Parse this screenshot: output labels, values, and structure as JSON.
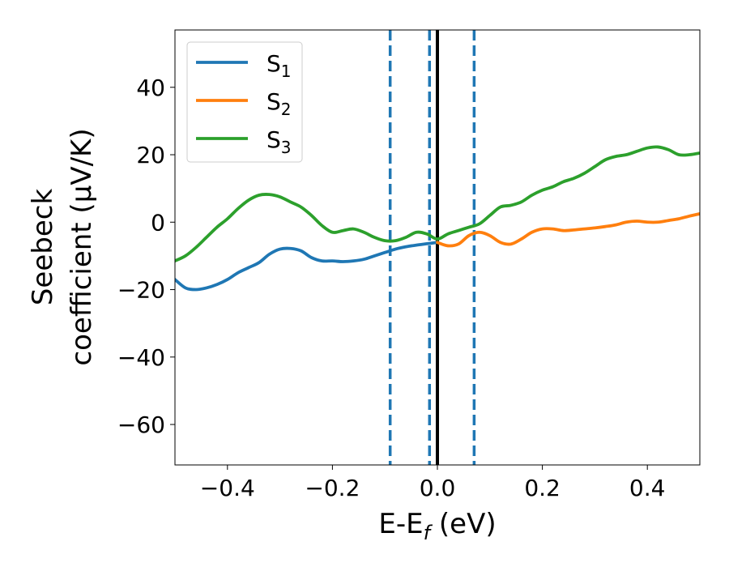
{
  "chart_data": {
    "type": "line",
    "title": "",
    "xlabel": {
      "main": "E-E",
      "sub": "f",
      "tail": " (eV)"
    },
    "ylabel": {
      "line1": "Seebeck",
      "line2": "coefficient  (μV/K)"
    },
    "xlim": [
      -0.5,
      0.5
    ],
    "ylim": [
      -72,
      57
    ],
    "xticks": [
      -0.4,
      -0.2,
      0.0,
      0.2,
      0.4
    ],
    "xtick_labels": [
      "−0.4",
      "−0.2",
      "0.0",
      "0.2",
      "0.4"
    ],
    "yticks": [
      -60,
      -40,
      -20,
      0,
      20,
      40
    ],
    "ytick_labels": [
      "−60",
      "−40",
      "−20",
      "0",
      "20",
      "40"
    ],
    "grid": false,
    "legend_position": "upper-left",
    "vlines": [
      {
        "x": -0.09,
        "style": "dashed",
        "color": "#1f77b4"
      },
      {
        "x": -0.015,
        "style": "dashed",
        "color": "#1f77b4"
      },
      {
        "x": 0.0,
        "style": "solid",
        "color": "#000000"
      },
      {
        "x": 0.07,
        "style": "dashed",
        "color": "#1f77b4"
      }
    ],
    "series": [
      {
        "name": "S",
        "sub": "1",
        "color": "#1f77b4",
        "x": [
          -0.5,
          -0.48,
          -0.46,
          -0.44,
          -0.42,
          -0.4,
          -0.38,
          -0.36,
          -0.34,
          -0.32,
          -0.3,
          -0.28,
          -0.26,
          -0.24,
          -0.22,
          -0.2,
          -0.18,
          -0.16,
          -0.14,
          -0.12,
          -0.1,
          -0.08,
          -0.06,
          -0.04,
          -0.02,
          0.0
        ],
        "y": [
          -17,
          -19.5,
          -20,
          -19.5,
          -18.5,
          -17,
          -15,
          -13.5,
          -12,
          -9.5,
          -8,
          -7.8,
          -8.5,
          -10.5,
          -11.5,
          -11.5,
          -11.7,
          -11.5,
          -11,
          -10,
          -9,
          -8,
          -7.3,
          -6.8,
          -6.4,
          -6
        ]
      },
      {
        "name": "S",
        "sub": "2",
        "color": "#ff7f0e",
        "x": [
          0.0,
          0.02,
          0.04,
          0.06,
          0.08,
          0.1,
          0.12,
          0.14,
          0.16,
          0.18,
          0.2,
          0.22,
          0.24,
          0.26,
          0.28,
          0.3,
          0.32,
          0.34,
          0.36,
          0.38,
          0.4,
          0.42,
          0.44,
          0.46,
          0.48,
          0.5
        ],
        "y": [
          -6,
          -7,
          -6.5,
          -4,
          -3,
          -4,
          -6,
          -6.5,
          -5,
          -3,
          -2,
          -2,
          -2.5,
          -2.3,
          -2,
          -1.7,
          -1.3,
          -0.8,
          0,
          0.3,
          0,
          0,
          0.5,
          1,
          1.8,
          2.5
        ]
      },
      {
        "name": "S",
        "sub": "3",
        "color": "#2ca02c",
        "x": [
          -0.5,
          -0.48,
          -0.46,
          -0.44,
          -0.42,
          -0.4,
          -0.38,
          -0.36,
          -0.34,
          -0.32,
          -0.3,
          -0.28,
          -0.26,
          -0.24,
          -0.22,
          -0.2,
          -0.18,
          -0.16,
          -0.14,
          -0.12,
          -0.1,
          -0.08,
          -0.06,
          -0.04,
          -0.02,
          0.0,
          0.02,
          0.04,
          0.06,
          0.08,
          0.1,
          0.12,
          0.14,
          0.16,
          0.18,
          0.2,
          0.22,
          0.24,
          0.26,
          0.28,
          0.3,
          0.32,
          0.34,
          0.36,
          0.38,
          0.4,
          0.42,
          0.44,
          0.46,
          0.48,
          0.5
        ],
        "y": [
          -11.5,
          -10,
          -7.5,
          -4.5,
          -1.5,
          1,
          4,
          6.5,
          8,
          8.2,
          7.5,
          6,
          4.5,
          2,
          -1,
          -3,
          -2.5,
          -2,
          -3,
          -4.5,
          -5.5,
          -5.5,
          -4.5,
          -3,
          -3.5,
          -5,
          -3.5,
          -2.5,
          -1.5,
          -0.5,
          2,
          4.5,
          5,
          6,
          8,
          9.5,
          10.5,
          12,
          13,
          14.5,
          16.5,
          18.5,
          19.5,
          20,
          21,
          22,
          22.3,
          21.5,
          20,
          20,
          20.5
        ]
      }
    ]
  }
}
